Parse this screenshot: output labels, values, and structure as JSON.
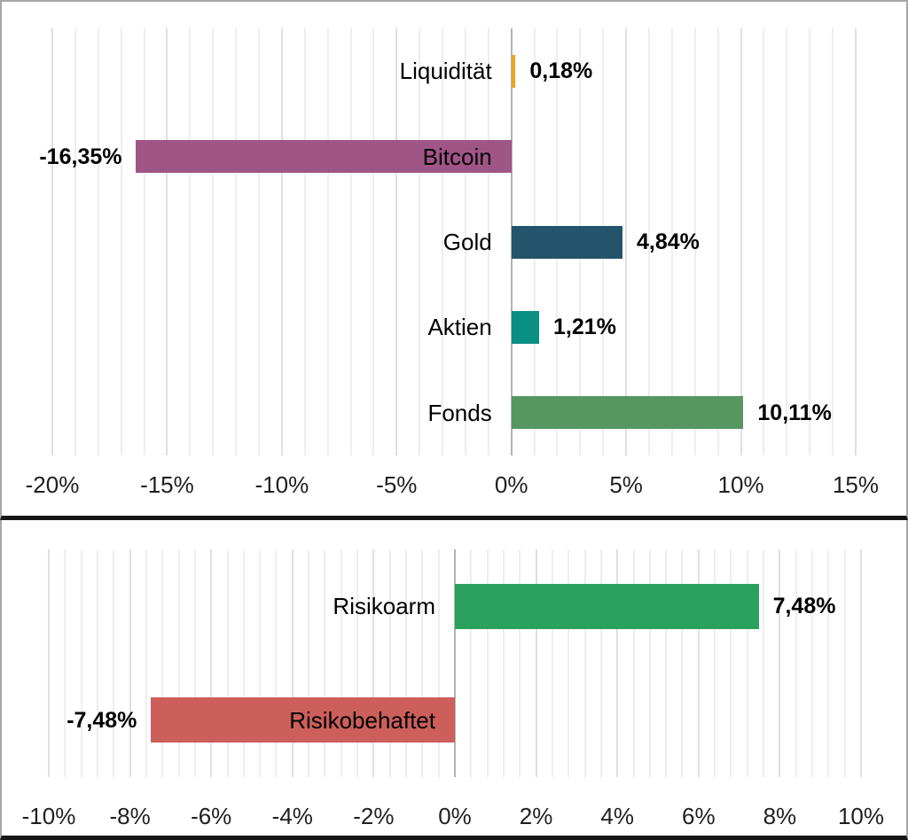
{
  "frame": {
    "background": "#ffffff",
    "border_color": "#a6a6a6",
    "divider_color": "#161616"
  },
  "chart_data": [
    {
      "type": "bar",
      "orientation": "horizontal",
      "title": "",
      "categories": [
        "Liquidität",
        "Bitcoin",
        "Gold",
        "Aktien",
        "Fonds"
      ],
      "values": [
        0.18,
        -16.35,
        4.84,
        1.21,
        10.11
      ],
      "value_labels": [
        "0,18%",
        "-16,35%",
        "4,84%",
        "1,21%",
        "10,11%"
      ],
      "bar_colors": [
        "#F2A21C",
        "#A05587",
        "#24546C",
        "#0A8F85",
        "#569760"
      ],
      "xlim": [
        -20,
        15
      ],
      "x_major_step": 5,
      "x_minor_step": 1,
      "x_tick_labels": [
        "-20%",
        "-15%",
        "-10%",
        "-5%",
        "0%",
        "5%",
        "10%",
        "15%"
      ],
      "grid": true,
      "grid_minor_color": "#eeeeee",
      "grid_major_color": "#e0e0e0",
      "zero_line_color": "#b3b3b3",
      "legend": "none"
    },
    {
      "type": "bar",
      "orientation": "horizontal",
      "title": "",
      "categories": [
        "Risikoarm",
        "Risikobehaftet"
      ],
      "values": [
        7.48,
        -7.48
      ],
      "value_labels": [
        "7,48%",
        "-7,48%"
      ],
      "bar_colors": [
        "#2AA15C",
        "#CC5F5C"
      ],
      "xlim": [
        -10,
        10
      ],
      "x_major_step": 2,
      "x_minor_step": 0.4,
      "x_tick_labels": [
        "-10%",
        "-8%",
        "-6%",
        "-4%",
        "-2%",
        "0%",
        "2%",
        "4%",
        "6%",
        "8%",
        "10%"
      ],
      "grid": true,
      "grid_minor_color": "#eeeeee",
      "grid_major_color": "#e0e0e0",
      "zero_line_color": "#b3b3b3",
      "legend": "none"
    }
  ]
}
